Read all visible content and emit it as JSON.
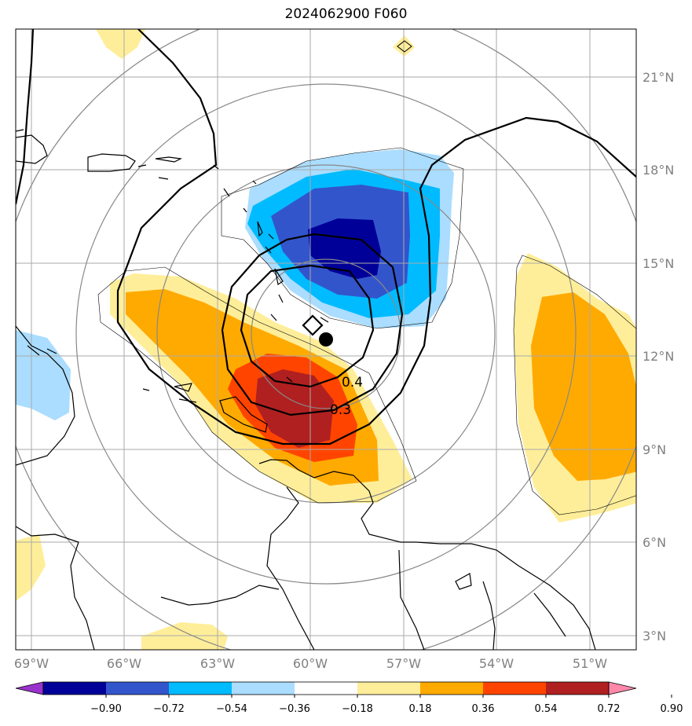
{
  "title": "2024062900 F060",
  "lat_labels": [
    "21°N",
    "18°N",
    "15°N",
    "12°N",
    "9°N",
    "6°N",
    "3°N"
  ],
  "lon_labels": [
    "69°W",
    "66°W",
    "63°W",
    "60°W",
    "57°W",
    "54°W",
    "51°W"
  ],
  "contour_labels": [
    "0.4",
    "0.3"
  ],
  "colorbar": {
    "ticks": [
      "−0.90",
      "−0.72",
      "−0.54",
      "−0.36",
      "−0.18",
      "0.18",
      "0.36",
      "0.54",
      "0.72",
      "0.90"
    ],
    "colors": [
      "#9933cc",
      "#000099",
      "#3355cc",
      "#00bbff",
      "#aaddff",
      "#ffffff",
      "#ffee99",
      "#ffaa00",
      "#ff4400",
      "#b02020",
      "#ff88aa"
    ]
  },
  "colors": {
    "neg_strong": "#000099",
    "neg_mid": "#3355cc",
    "neg_light": "#00bbff",
    "neg_pale": "#aaddff",
    "pos_pale": "#ffee99",
    "pos_mid": "#ffaa00",
    "pos_strong": "#ff4400",
    "pos_max": "#b02020",
    "grid": "#aaaaaa",
    "range_ring": "#888888"
  }
}
